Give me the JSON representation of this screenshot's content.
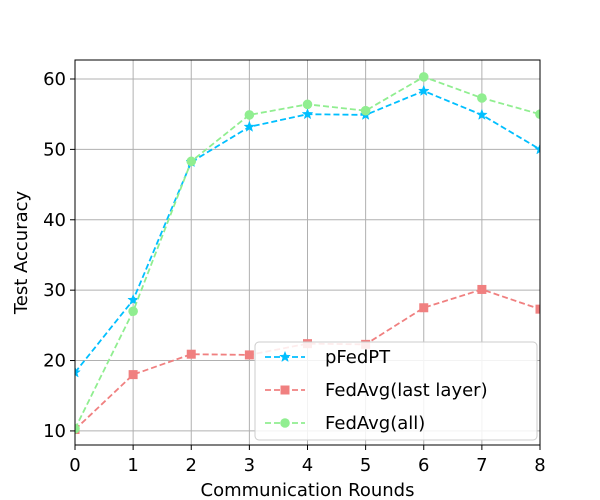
{
  "chart_data": {
    "type": "line",
    "title": "",
    "xlabel": "Communication Rounds",
    "ylabel": "Test Accuracy",
    "xlim": [
      0,
      8
    ],
    "ylim": [
      8,
      62.7
    ],
    "xticks": [
      0,
      1,
      2,
      3,
      4,
      5,
      6,
      7,
      8
    ],
    "yticks": [
      10,
      20,
      30,
      40,
      50,
      60
    ],
    "grid": true,
    "legend_position": "lower-right",
    "x": [
      0,
      1,
      2,
      3,
      4,
      5,
      6,
      7,
      8
    ],
    "series": [
      {
        "name": "pFedPT",
        "color": "#00bfff",
        "marker": "star",
        "linestyle": "dashed",
        "values": [
          18.3,
          28.6,
          48.2,
          53.2,
          55.0,
          54.9,
          58.3,
          54.9,
          50.0
        ]
      },
      {
        "name": "FedAvg(last layer)",
        "color": "#f08080",
        "marker": "square",
        "linestyle": "dashed",
        "values": [
          10.2,
          18.0,
          20.9,
          20.8,
          22.4,
          22.3,
          27.5,
          30.1,
          27.3
        ]
      },
      {
        "name": "FedAvg(all)",
        "color": "#90ee90",
        "marker": "circle",
        "linestyle": "dashed",
        "values": [
          10.3,
          27.0,
          48.3,
          54.9,
          56.4,
          55.5,
          60.3,
          57.3,
          55.0
        ]
      }
    ]
  }
}
